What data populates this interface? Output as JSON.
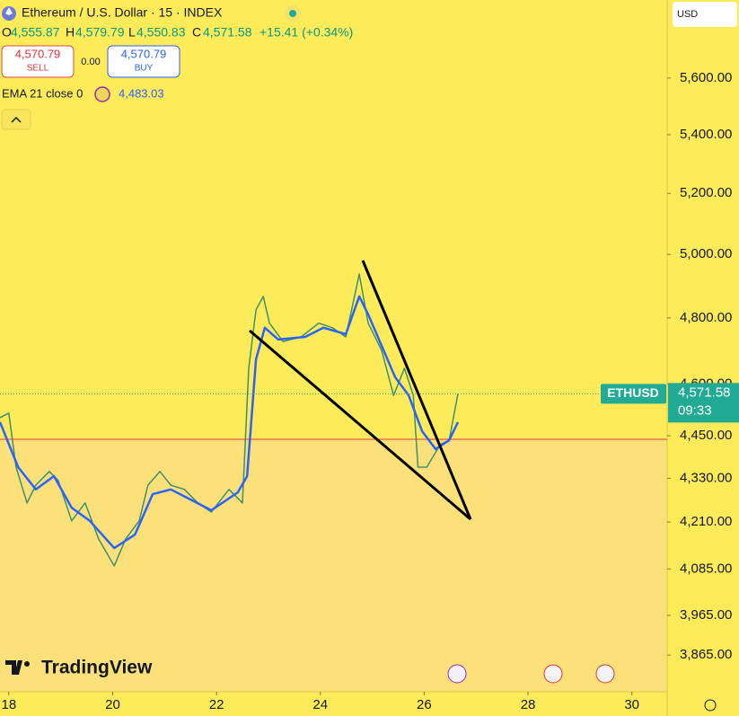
{
  "chart_data": {
    "type": "line",
    "title": "Ethereum / U.S. Dollar · 15 · INDEX",
    "ohlc": [
      {
        "key": "O",
        "label": "4,555.87"
      },
      {
        "key": "H",
        "label": "4,579.79"
      },
      {
        "key": "L",
        "label": "4,550.83"
      },
      {
        "key": "C",
        "label": "4,571.58"
      }
    ],
    "change": "+15.41 (+0.34%)",
    "sell": {
      "price": "4,570.79",
      "label": "SELL"
    },
    "spread": "0.00",
    "buy": {
      "price": "4,570.79",
      "label": "BUY"
    },
    "indicator_value": "4,483.03",
    "currency": "USD",
    "countdown": "09:33",
    "brand": "TradingView",
    "log_scale": true,
    "series": [
      {
        "name": "ETHUSD",
        "color": "#3f8f6b",
        "x": [
          17.83,
          18.0,
          18.14,
          18.35,
          18.52,
          18.78,
          18.95,
          19.21,
          19.47,
          19.73,
          20.03,
          20.25,
          20.51,
          20.68,
          20.91,
          21.12,
          21.38,
          21.64,
          21.9,
          22.24,
          22.5,
          22.62,
          22.76,
          22.9,
          23.02,
          23.28,
          23.63,
          23.97,
          24.23,
          24.49,
          24.75,
          24.92,
          25.18,
          25.41,
          25.62,
          25.79,
          25.88,
          26.05,
          26.31,
          26.48,
          26.65
        ],
        "values": [
          4502,
          4515,
          4361,
          4262,
          4311,
          4349,
          4324,
          4213,
          4262,
          4164,
          4093,
          4164,
          4213,
          4311,
          4349,
          4311,
          4299,
          4262,
          4237,
          4299,
          4262,
          4647,
          4825,
          4867,
          4784,
          4728,
          4742,
          4784,
          4770,
          4742,
          4937,
          4784,
          4701,
          4567,
          4647,
          4567,
          4361,
          4361,
          4425,
          4437,
          4572
        ]
      },
      {
        "name": "EMA 21 close 0",
        "color": "#2962ff",
        "x": [
          17.83,
          18.18,
          18.52,
          18.87,
          19.21,
          19.56,
          20.03,
          20.43,
          20.77,
          21.12,
          21.46,
          21.9,
          22.41,
          22.59,
          22.76,
          22.93,
          23.19,
          23.71,
          24.06,
          24.49,
          24.75,
          24.92,
          25.18,
          25.44,
          25.7,
          25.96,
          26.22,
          26.48,
          26.65
        ],
        "values": [
          4489,
          4361,
          4299,
          4336,
          4249,
          4213,
          4140,
          4176,
          4286,
          4299,
          4274,
          4242,
          4291,
          4336,
          4674,
          4770,
          4734,
          4742,
          4770,
          4750,
          4867,
          4811,
          4715,
          4621,
          4567,
          4463,
          4412,
          4437,
          4489
        ]
      }
    ],
    "last_price": {
      "value": 4571.58,
      "label": "4,571.58"
    },
    "hline": {
      "value": 4440,
      "color": "#e53935"
    },
    "xlim": [
      17.83,
      30.68
    ],
    "xticks": [
      18,
      20,
      22,
      24,
      26,
      28,
      30
    ],
    "ylim": [
      3775,
      5888
    ],
    "yticks": [
      {
        "value": 5600,
        "label": "5,600.00"
      },
      {
        "value": 5400,
        "label": "5,400.00"
      },
      {
        "value": 5200,
        "label": "5,200.00"
      },
      {
        "value": 5000,
        "label": "5,000.00"
      },
      {
        "value": 4800,
        "label": "4,800.00"
      },
      {
        "value": 4600,
        "label": "4,600.00"
      },
      {
        "value": 4450,
        "label": "4,450.00"
      },
      {
        "value": 4330,
        "label": "4,330.00"
      },
      {
        "value": 4210,
        "label": "4,210.00"
      },
      {
        "value": 4085,
        "label": "4,085.00"
      },
      {
        "value": 3965,
        "label": "3,965.00"
      },
      {
        "value": 3865,
        "label": "3,865.00"
      }
    ]
  }
}
